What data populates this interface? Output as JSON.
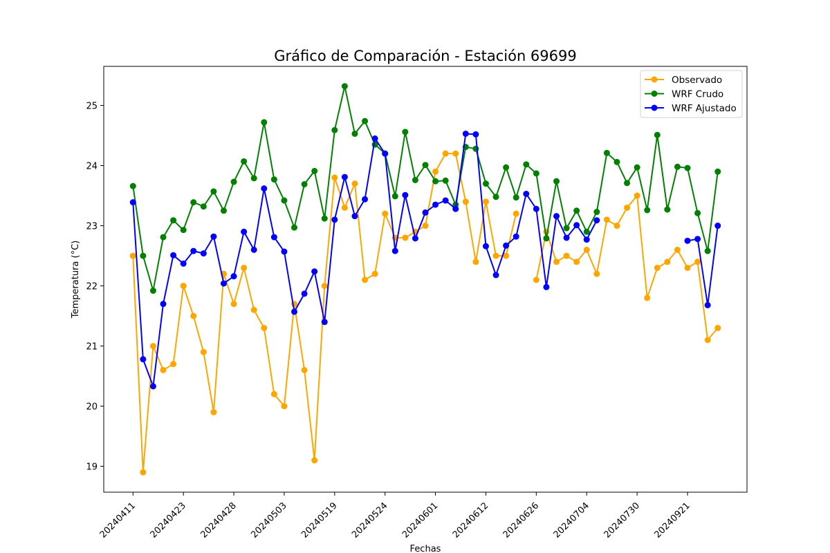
{
  "chart_data": {
    "type": "line",
    "title": "Gráfico de Comparación - Estación 69699",
    "xlabel": "Fechas",
    "ylabel": "Temperatura (°C)",
    "ylim": [
      18.57,
      25.65
    ],
    "yticks": [
      19,
      20,
      21,
      22,
      23,
      24,
      25
    ],
    "xtick_labels": [
      "20240411",
      "20240423",
      "20240428",
      "20240503",
      "20240519",
      "20240524",
      "20240601",
      "20240612",
      "20240626",
      "20240704",
      "20240730",
      "20240921"
    ],
    "xtick_index_interval": 5,
    "legend_position": "upper right",
    "grid": false,
    "series": [
      {
        "name": "Observado",
        "color": "#ffa500",
        "values": [
          22.5,
          18.9,
          21.0,
          20.6,
          20.7,
          22.0,
          21.5,
          20.9,
          19.9,
          22.2,
          21.7,
          22.3,
          21.6,
          21.3,
          20.2,
          20.0,
          21.7,
          20.6,
          19.1,
          22.0,
          23.8,
          23.3,
          23.7,
          22.1,
          22.2,
          23.2,
          22.8,
          22.8,
          22.9,
          23.0,
          23.9,
          24.2,
          24.2,
          23.4,
          22.4,
          23.4,
          22.5,
          22.5,
          23.2,
          null,
          22.1,
          22.9,
          22.4,
          22.5,
          22.4,
          22.6,
          22.2,
          23.1,
          23.0,
          23.3,
          23.5,
          21.8,
          22.3,
          22.4,
          22.6,
          22.3,
          22.4,
          21.1,
          21.3
        ]
      },
      {
        "name": "WRF Crudo",
        "color": "#008000",
        "values": [
          23.66,
          22.5,
          21.92,
          22.81,
          23.09,
          22.93,
          23.39,
          23.32,
          23.57,
          23.25,
          23.73,
          24.07,
          23.79,
          24.72,
          23.77,
          23.42,
          22.97,
          23.69,
          23.91,
          23.12,
          24.59,
          25.32,
          24.53,
          24.74,
          24.35,
          24.2,
          23.49,
          24.56,
          23.76,
          24.01,
          23.74,
          23.75,
          23.35,
          24.31,
          24.28,
          23.7,
          23.48,
          23.97,
          23.47,
          24.02,
          23.87,
          22.79,
          23.74,
          22.96,
          23.25,
          22.9,
          23.23,
          24.21,
          24.06,
          23.71,
          23.97,
          23.26,
          24.51,
          23.27,
          23.98,
          23.96,
          23.21,
          22.58,
          23.9
        ]
      },
      {
        "name": "WRF Ajustado",
        "color": "#0000ff",
        "values": [
          23.39,
          20.78,
          20.33,
          21.7,
          22.51,
          22.37,
          22.58,
          22.54,
          22.82,
          22.04,
          22.16,
          22.9,
          22.6,
          23.62,
          22.81,
          22.57,
          21.57,
          21.87,
          22.24,
          21.4,
          23.1,
          23.81,
          23.16,
          23.44,
          24.45,
          24.2,
          22.58,
          23.51,
          22.79,
          23.22,
          23.35,
          23.42,
          23.28,
          24.53,
          24.52,
          22.66,
          22.18,
          22.67,
          22.82,
          23.53,
          23.28,
          21.98,
          23.16,
          22.8,
          23.01,
          22.77,
          23.09,
          null,
          null,
          null,
          null,
          null,
          null,
          null,
          null,
          22.75,
          22.78,
          21.68,
          23.0
        ]
      }
    ]
  }
}
